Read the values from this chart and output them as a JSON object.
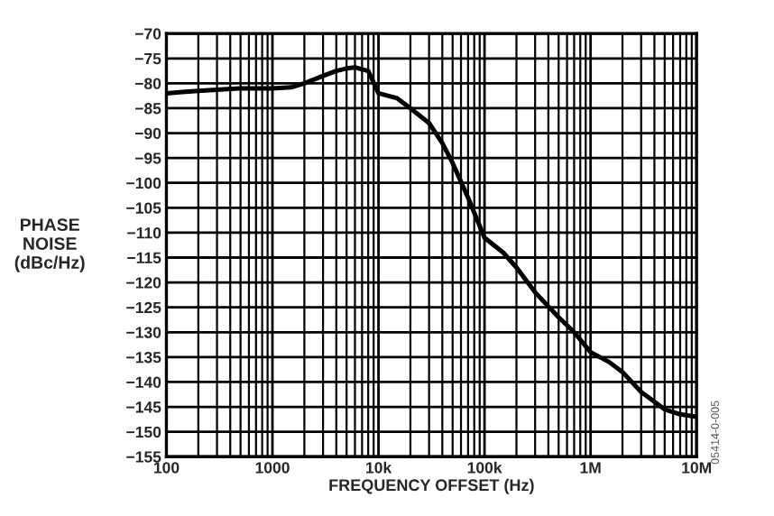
{
  "chart_data": {
    "type": "line",
    "xlabel": "FREQUENCY OFFSET (Hz)",
    "ylabel": "PHASE\nNOISE\n(dBc/Hz)",
    "log": "x",
    "x": [
      100,
      150,
      200,
      300,
      500,
      700,
      1000,
      1500,
      2000,
      3000,
      4000,
      5000,
      6000,
      7000,
      8000,
      10000,
      15000,
      20000,
      30000,
      40000,
      50000,
      70000,
      100000,
      150000,
      200000,
      300000,
      500000,
      700000,
      1000000,
      1500000,
      2000000,
      3000000,
      5000000,
      7000000,
      10000000
    ],
    "series": [
      {
        "color": "#000000",
        "values": [
          -82,
          -81.7,
          -81.5,
          -81.3,
          -81,
          -81,
          -81,
          -80.8,
          -80,
          -78.5,
          -77.5,
          -77,
          -76.8,
          -77.2,
          -77.5,
          -82,
          -83,
          -85,
          -88,
          -92,
          -96,
          -103,
          -111,
          -114,
          -117,
          -122,
          -127,
          -130,
          -134,
          -136,
          -138,
          -142,
          -145.5,
          -146.5,
          -147
        ]
      }
    ],
    "xlim": [
      100,
      10000000
    ],
    "xticks": [
      {
        "value": 100,
        "label": "100"
      },
      {
        "value": 1000,
        "label": "1000"
      },
      {
        "value": 10000,
        "label": "10k"
      },
      {
        "value": 100000,
        "label": "100k"
      },
      {
        "value": 1000000,
        "label": "1M"
      },
      {
        "value": 10000000,
        "label": "10M"
      }
    ],
    "ylim": [
      -155,
      -70
    ],
    "yticks": [
      -155,
      -150,
      -145,
      -140,
      -135,
      -130,
      -125,
      -120,
      -115,
      -110,
      -105,
      -100,
      -95,
      -90,
      -85,
      -80,
      -75,
      -70
    ],
    "grid": true,
    "annotations": [
      "05414-0-005"
    ]
  }
}
